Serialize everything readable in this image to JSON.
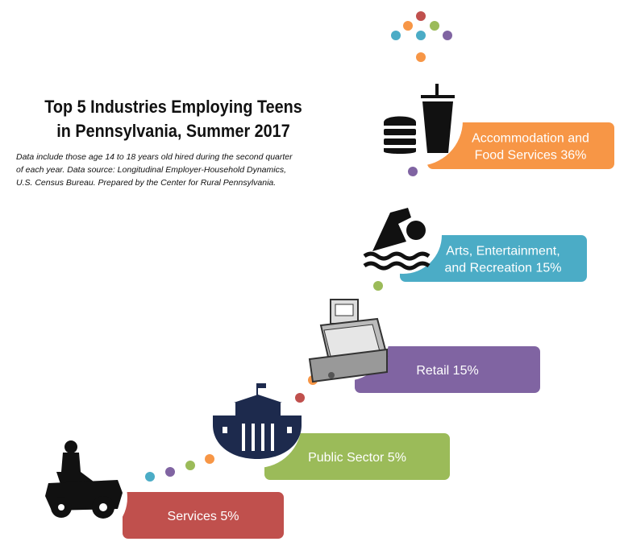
{
  "title_lines": [
    "Top 5 Industries Employing Teens",
    "in Pennsylvania, Summer 2017"
  ],
  "subtitle_lines": [
    "Data include those age 14 to 18 years old hired during the second quarter",
    "of each year. Data source: Longitudinal Employer-Household Dynamics,",
    "U.S. Census Bureau. Prepared by the Center for Rural Pennsylvania."
  ],
  "chart_data": {
    "type": "bar",
    "title": "Top 5 Industries Employing Teens in Pennsylvania, Summer 2017",
    "categories": [
      "Services",
      "Public Sector",
      "Retail",
      "Arts, Entertainment, and Recreation",
      "Accommodation and Food Services"
    ],
    "values": [
      5,
      5,
      15,
      15,
      36
    ],
    "unit": "%",
    "label_lines": [
      [
        "Services 5%"
      ],
      [
        "Public Sector 5%"
      ],
      [
        "Retail 15%"
      ],
      [
        "Arts, Entertainment,",
        "and Recreation 15%"
      ],
      [
        "Accommodation and",
        "Food Services 36%"
      ]
    ],
    "colors": [
      "#c0504d",
      "#9bbb59",
      "#8064a2",
      "#4bacc6",
      "#f79646"
    ],
    "icons": [
      "riding-mower-icon",
      "capitol-building-icon",
      "cash-register-icon",
      "swimmer-icon",
      "burger-drink-icon"
    ],
    "dot_colors": [
      "#4bacc6",
      "#8064a2",
      "#9bbb59",
      "#f79646",
      "#c0504d"
    ]
  }
}
